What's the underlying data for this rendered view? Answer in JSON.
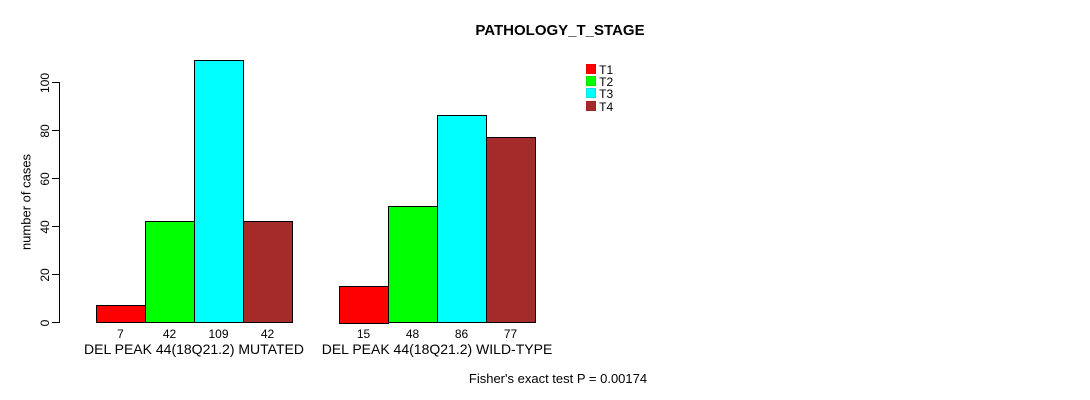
{
  "chart_data": {
    "type": "bar",
    "title": "PATHOLOGY_T_STAGE",
    "ylabel": "number of cases",
    "xlabel": "",
    "ylim": [
      0,
      100
    ],
    "yticks": [
      0,
      20,
      40,
      60,
      80,
      100
    ],
    "grid": false,
    "categories": [
      "DEL PEAK 44(18Q21.2) MUTATED",
      "DEL PEAK 44(18Q21.2) WILD-TYPE"
    ],
    "series": [
      {
        "name": "T1",
        "color": "#FF0000",
        "values": [
          7,
          15
        ]
      },
      {
        "name": "T2",
        "color": "#00FF00",
        "values": [
          42,
          48
        ]
      },
      {
        "name": "T3",
        "color": "#00FFFF",
        "values": [
          109,
          86
        ]
      },
      {
        "name": "T4",
        "color": "#A52A2A",
        "values": [
          42,
          77
        ]
      }
    ],
    "legend": {
      "position": "top-right",
      "entries": [
        "T1",
        "T2",
        "T3",
        "T4"
      ]
    },
    "annotation": "Fisher's exact test P = 0.00174"
  }
}
